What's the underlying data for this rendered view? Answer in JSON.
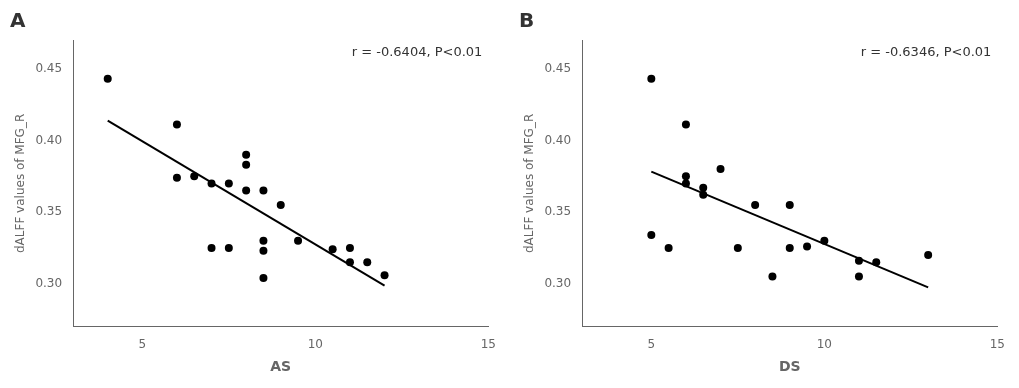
{
  "chart_data": [
    {
      "type": "scatter",
      "title": "A",
      "xlabel": "AS",
      "ylabel": "dALFF values of MFG_R",
      "annotation": "r = -0.6404, P<0.01",
      "xlim": [
        3,
        15
      ],
      "ylim": [
        0.27,
        0.47
      ],
      "xticks": [
        5,
        10,
        15
      ],
      "yticks": [
        {
          "value": 0.3,
          "label": "0.30"
        },
        0.35,
        {
          "value": 0.4,
          "label": "0.40"
        },
        0.45
      ],
      "grid": false,
      "series": [
        {
          "type": "scatter",
          "color": "#000000",
          "marker": "circle",
          "x": [
            4.0,
            6.0,
            6.0,
            6.5,
            7.0,
            7.0,
            7.5,
            7.5,
            8.0,
            8.0,
            8.0,
            8.5,
            8.5,
            8.5,
            8.5,
            9.0,
            9.5,
            10.5,
            11.0,
            11.0,
            11.5,
            12.0
          ],
          "values": [
            0.443,
            0.411,
            0.374,
            0.375,
            0.37,
            0.325,
            0.37,
            0.325,
            0.39,
            0.383,
            0.365,
            0.365,
            0.33,
            0.323,
            0.304,
            0.355,
            0.33,
            0.324,
            0.325,
            0.315,
            0.315,
            0.306
          ]
        },
        {
          "type": "line",
          "color": "#000000",
          "line_style": "solid",
          "x": [
            4.0,
            12.0
          ],
          "values": [
            0.4138,
            0.2987
          ]
        }
      ]
    },
    {
      "type": "scatter",
      "title": "B",
      "xlabel": "DS",
      "ylabel": "dALFF values of MFG_R",
      "annotation": "r = -0.6346, P<0.01",
      "xlim": [
        3,
        15
      ],
      "ylim": [
        0.27,
        0.47
      ],
      "xticks": [
        5,
        10,
        15
      ],
      "yticks": [
        {
          "value": 0.3,
          "label": "0.30"
        },
        0.35,
        {
          "value": 0.4,
          "label": "0.40"
        },
        0.45
      ],
      "grid": false,
      "series": [
        {
          "type": "scatter",
          "color": "#000000",
          "marker": "circle",
          "x": [
            5.0,
            5.0,
            5.5,
            6.0,
            6.0,
            6.0,
            6.5,
            6.5,
            7.0,
            7.5,
            8.0,
            8.5,
            9.0,
            9.0,
            9.5,
            10.0,
            11.0,
            11.0,
            11.5,
            13.0
          ],
          "values": [
            0.443,
            0.334,
            0.325,
            0.411,
            0.375,
            0.37,
            0.367,
            0.362,
            0.38,
            0.325,
            0.355,
            0.305,
            0.355,
            0.325,
            0.326,
            0.33,
            0.316,
            0.305,
            0.315,
            0.32
          ]
        },
        {
          "type": "line",
          "color": "#000000",
          "line_style": "solid",
          "x": [
            5.0,
            13.0
          ],
          "values": [
            0.3782,
            0.2975
          ]
        }
      ]
    }
  ]
}
